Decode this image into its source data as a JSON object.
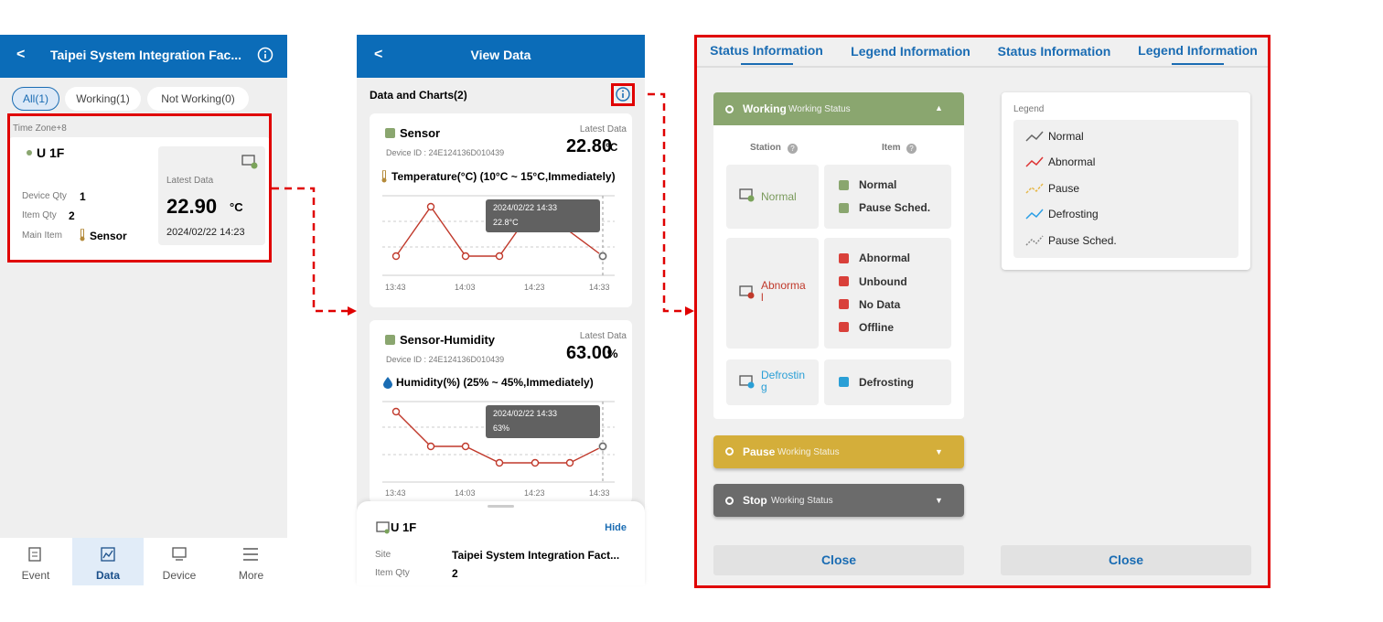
{
  "home": {
    "title": "Taipei System Integration Fac...",
    "tabs": [
      "All(1)",
      "Working(1)",
      "Not Working(0)"
    ],
    "time_zone": "Time Zone+8",
    "card": {
      "name": "U 1F",
      "device_qty_label": "Device Qty",
      "device_qty": 1,
      "item_qty_label": "Item Qty",
      "item_qty": 2,
      "main_item_label": "Main Item",
      "main_item": "Sensor",
      "latest_label": "Latest Data",
      "latest_value": "22.90",
      "latest_unit": "°C",
      "timestamp": "2024/02/22 14:23"
    },
    "nav": [
      "Event",
      "Data",
      "Device",
      "More"
    ]
  },
  "view_data": {
    "title": "View Data",
    "section": "Data and Charts(2)",
    "cards": [
      {
        "name": "Sensor",
        "device_id": "Device ID : 24E124136D010439",
        "latest_label": "Latest Data",
        "latest_value": "22.80",
        "latest_unit": "°C",
        "range": "Temperature(°C) (10°C ~ 15°C,Immediately)",
        "tooltip_time": "2024/02/22 14:33",
        "tooltip_value": "22.8°C",
        "x_labels": [
          "13:43",
          "14:03",
          "14:23",
          "14:33"
        ]
      },
      {
        "name": "Sensor-Humidity",
        "device_id": "Device ID : 24E124136D010439",
        "latest_label": "Latest Data",
        "latest_value": "63.00",
        "latest_unit": "%",
        "range": "Humidity(%) (25% ~ 45%,Immediately)",
        "tooltip_time": "2024/02/22 14:33",
        "tooltip_value": "63%",
        "x_labels": [
          "13:43",
          "14:03",
          "14:23",
          "14:33"
        ]
      }
    ],
    "sheet": {
      "name": "U 1F",
      "hide": "Hide",
      "site_label": "Site",
      "site": "Taipei System Integration Fact...",
      "item_qty_label": "Item Qty",
      "item_qty": 2
    }
  },
  "info": {
    "tabs": [
      "Status Information",
      "Legend Information",
      "Status Information",
      "Legend Information"
    ],
    "working": {
      "title": "Working",
      "subtitle": "Working Status",
      "station_header": "Station",
      "item_header": "Item",
      "groups": [
        {
          "station": "Normal",
          "items": [
            "Normal",
            "Pause Sched."
          ]
        },
        {
          "station": "Abnormal",
          "items": [
            "Abnormal",
            "Unbound",
            "No Data",
            "Offline"
          ]
        },
        {
          "station": "Defrosting",
          "items": [
            "Defrosting"
          ]
        }
      ]
    },
    "pause": {
      "title": "Pause",
      "subtitle": "Working Status"
    },
    "stop": {
      "title": "Stop",
      "subtitle": "Working Status"
    },
    "close": "Close",
    "legend": {
      "title": "Legend",
      "items": [
        "Normal",
        "Abnormal",
        "Pause",
        "Defrosting",
        "Pause Sched."
      ]
    },
    "legend_close": "Close"
  }
}
